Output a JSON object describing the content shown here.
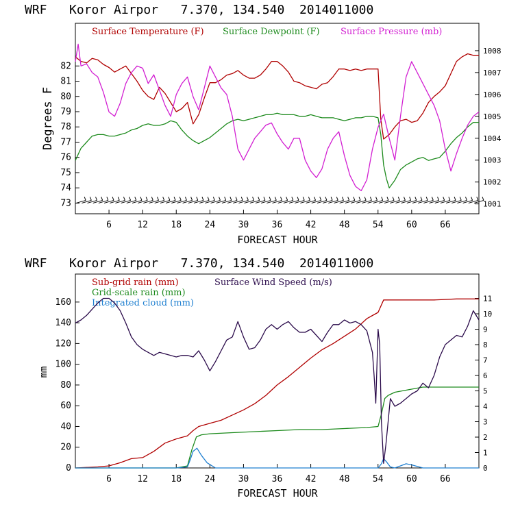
{
  "colors": {
    "temperature": "#b00000",
    "dewpoint": "#1c8a1c",
    "pressure": "#d21fd2",
    "subgrid": "#b00000",
    "gridscale": "#1c8a1c",
    "cloud": "#1e7fd0",
    "wind": "#2a0a4a",
    "barbs": "#000000"
  },
  "chart_data": [
    {
      "type": "line",
      "title": "WRF   Koror Airpor   7.370, 134.540  2014011000",
      "xlabel": "FORECAST HOUR",
      "ylabel": "Degrees F",
      "xlim": [
        0,
        72
      ],
      "ylim": [
        72.3,
        84.8
      ],
      "y2lim": [
        1000.55,
        1009.25
      ],
      "xticks": [
        6,
        12,
        18,
        24,
        30,
        36,
        42,
        48,
        54,
        60,
        66
      ],
      "yticks": [
        73,
        74,
        75,
        76,
        77,
        78,
        79,
        80,
        81,
        82
      ],
      "y2ticks": [
        1001,
        1002,
        1003,
        1004,
        1005,
        1006,
        1007,
        1008
      ],
      "legend": [
        "Surface Temperature (F)",
        "Surface Dewpoint (F)",
        "Surface Pressure (mb)"
      ],
      "legend_position": "top",
      "series": [
        {
          "name": "Surface Temperature (F)",
          "axis": "left",
          "x": [
            0,
            1,
            2,
            3,
            4,
            5,
            6,
            7,
            8,
            9,
            10,
            11,
            12,
            13,
            14,
            15,
            16,
            17,
            18,
            19,
            20,
            21,
            22,
            23,
            24,
            25,
            26,
            27,
            28,
            29,
            30,
            31,
            32,
            33,
            34,
            35,
            36,
            37,
            38,
            39,
            40,
            41,
            42,
            43,
            44,
            45,
            46,
            47,
            48,
            49,
            50,
            51,
            52,
            53,
            54,
            54.5,
            55,
            56,
            57,
            58,
            59,
            60,
            61,
            62,
            63,
            64,
            65,
            66,
            67,
            68,
            69,
            70,
            71,
            72
          ],
          "values": [
            82.6,
            82.3,
            82.2,
            82.5,
            82.4,
            82.1,
            81.9,
            81.6,
            81.8,
            82.0,
            81.5,
            81.0,
            80.4,
            80.0,
            79.8,
            80.6,
            80.2,
            79.6,
            79.0,
            79.2,
            79.6,
            78.2,
            78.8,
            79.9,
            80.9,
            80.9,
            81.1,
            81.4,
            81.5,
            81.7,
            81.4,
            81.2,
            81.2,
            81.4,
            81.8,
            82.3,
            82.3,
            82.0,
            81.6,
            81.0,
            80.9,
            80.7,
            80.6,
            80.5,
            80.8,
            80.9,
            81.3,
            81.8,
            81.8,
            81.7,
            81.8,
            81.7,
            81.8,
            81.8,
            81.8,
            78.5,
            77.2,
            77.5,
            78.0,
            78.4,
            78.5,
            78.3,
            78.4,
            78.9,
            79.6,
            80.0,
            80.3,
            80.7,
            81.5,
            82.3,
            82.6,
            82.8,
            82.7,
            82.7
          ]
        },
        {
          "name": "Surface Dewpoint (F)",
          "axis": "left",
          "x": [
            0,
            1,
            2,
            3,
            4,
            5,
            6,
            7,
            8,
            9,
            10,
            11,
            12,
            13,
            14,
            15,
            16,
            17,
            18,
            19,
            20,
            21,
            22,
            23,
            24,
            25,
            26,
            27,
            28,
            29,
            30,
            31,
            32,
            33,
            34,
            35,
            36,
            37,
            38,
            39,
            40,
            41,
            42,
            43,
            44,
            45,
            46,
            47,
            48,
            49,
            50,
            51,
            52,
            53,
            54,
            54.5,
            55,
            55.5,
            56,
            57,
            58,
            59,
            60,
            61,
            62,
            63,
            64,
            65,
            66,
            67,
            68,
            69,
            70,
            71,
            72
          ],
          "values": [
            75.8,
            76.6,
            77.0,
            77.4,
            77.5,
            77.5,
            77.4,
            77.4,
            77.5,
            77.6,
            77.8,
            77.9,
            78.1,
            78.2,
            78.1,
            78.1,
            78.2,
            78.4,
            78.3,
            77.8,
            77.4,
            77.1,
            76.9,
            77.1,
            77.3,
            77.6,
            77.9,
            78.2,
            78.4,
            78.5,
            78.4,
            78.5,
            78.6,
            78.7,
            78.8,
            78.8,
            78.9,
            78.8,
            78.8,
            78.8,
            78.7,
            78.7,
            78.8,
            78.7,
            78.6,
            78.6,
            78.6,
            78.5,
            78.4,
            78.5,
            78.6,
            78.6,
            78.7,
            78.7,
            78.6,
            77.5,
            75.5,
            74.6,
            74.0,
            74.5,
            75.2,
            75.5,
            75.7,
            75.9,
            76.0,
            75.8,
            75.9,
            76.0,
            76.4,
            76.9,
            77.3,
            77.6,
            78.0,
            78.3,
            78.3
          ]
        },
        {
          "name": "Surface Pressure (mb)",
          "axis": "right",
          "x": [
            0,
            0.5,
            1,
            2,
            3,
            4,
            5,
            6,
            7,
            8,
            9,
            10,
            11,
            12,
            13,
            14,
            15,
            16,
            17,
            18,
            19,
            20,
            21,
            22,
            23,
            24,
            25,
            26,
            27,
            28,
            29,
            30,
            31,
            32,
            33,
            34,
            35,
            36,
            37,
            38,
            39,
            40,
            41,
            42,
            43,
            44,
            45,
            46,
            47,
            48,
            49,
            50,
            51,
            52,
            53,
            54,
            55,
            56,
            57,
            58,
            59,
            60,
            61,
            62,
            63,
            64,
            65,
            66,
            67,
            68,
            69,
            70,
            71,
            72
          ],
          "values": [
            1007.5,
            1008.3,
            1007.3,
            1007.4,
            1007.0,
            1006.8,
            1006.1,
            1005.2,
            1005.0,
            1005.6,
            1006.5,
            1007.0,
            1007.3,
            1007.2,
            1006.5,
            1006.9,
            1006.2,
            1005.5,
            1005.0,
            1006.0,
            1006.5,
            1006.8,
            1005.9,
            1005.3,
            1006.3,
            1007.3,
            1006.8,
            1006.3,
            1006.0,
            1005.0,
            1003.5,
            1003.0,
            1003.5,
            1004.0,
            1004.3,
            1004.6,
            1004.7,
            1004.2,
            1003.8,
            1003.5,
            1004.0,
            1004.0,
            1003.0,
            1002.5,
            1002.2,
            1002.6,
            1003.5,
            1004.0,
            1004.3,
            1003.2,
            1002.3,
            1001.8,
            1001.6,
            1002.1,
            1003.5,
            1004.5,
            1005.1,
            1004.0,
            1003.0,
            1005.0,
            1006.8,
            1007.5,
            1007.0,
            1006.5,
            1006.0,
            1005.5,
            1004.8,
            1003.5,
            1002.5,
            1003.3,
            1004.0,
            1004.6,
            1005.0,
            1005.2
          ]
        }
      ],
      "wind_barbs": {
        "x_start": 1,
        "x_end": 72,
        "y": 73.0,
        "note": ""
      }
    },
    {
      "type": "line",
      "title": "WRF   Koror Airpor   7.370, 134.540  2014011000",
      "xlabel": "FORECAST HOUR",
      "ylabel": "mm",
      "xlim": [
        0,
        72
      ],
      "ylim": [
        0,
        187
      ],
      "y2lim": [
        0,
        12.58
      ],
      "xticks": [
        6,
        12,
        18,
        24,
        30,
        36,
        42,
        48,
        54,
        60,
        66
      ],
      "yticks": [
        0,
        20,
        40,
        60,
        80,
        100,
        120,
        140,
        160
      ],
      "y2ticks": [
        0,
        1,
        2,
        3,
        4,
        5,
        6,
        7,
        8,
        9,
        10,
        11
      ],
      "legend": [
        "Sub-grid rain (mm)",
        "Grid-scale rain (mm)",
        "Integrated cloud (mm)",
        "Surface Wind Speed (m/s)"
      ],
      "legend_position": "top-left",
      "series": [
        {
          "name": "Sub-grid rain (mm)",
          "axis": "left",
          "x": [
            0,
            4,
            6,
            8,
            10,
            12,
            14,
            16,
            18,
            20,
            21,
            22,
            24,
            26,
            28,
            30,
            32,
            34,
            36,
            38,
            40,
            42,
            44,
            46,
            48,
            50,
            52,
            53,
            54,
            55,
            56,
            60,
            64,
            68,
            72
          ],
          "values": [
            0,
            1,
            2,
            5,
            9,
            10,
            16,
            24,
            28,
            31,
            36,
            40,
            43,
            46,
            51,
            56,
            62,
            70,
            80,
            88,
            97,
            106,
            114,
            120,
            127,
            134,
            144,
            147,
            150,
            162,
            162,
            162,
            162,
            163,
            163
          ]
        },
        {
          "name": "Grid-scale rain (mm)",
          "axis": "left",
          "x": [
            0,
            18,
            20,
            20.8,
            21.6,
            22.5,
            24,
            28,
            32,
            36,
            40,
            44,
            48,
            52,
            54,
            54.6,
            55.2,
            55.8,
            57,
            60,
            62,
            66,
            72
          ],
          "values": [
            0,
            0,
            2,
            18,
            30,
            32,
            33,
            34,
            35,
            36,
            37,
            37,
            38,
            39,
            40,
            52,
            67,
            70,
            73,
            76,
            78,
            78,
            78
          ]
        },
        {
          "name": "Integrated cloud (mm)",
          "axis": "left",
          "x": [
            0,
            10,
            18,
            20,
            20.5,
            21,
            21.7,
            22.5,
            23.5,
            25,
            30,
            40,
            50,
            54,
            54.6,
            55,
            55.5,
            56.2,
            57,
            58,
            59,
            60,
            62,
            66,
            72
          ],
          "values": [
            0,
            0,
            0,
            1,
            8,
            16,
            19,
            12,
            5,
            0,
            0,
            0,
            0,
            0,
            4,
            9,
            6,
            1,
            0,
            2,
            4,
            3,
            0,
            0,
            0
          ]
        },
        {
          "name": "Surface Wind Speed (m/s)",
          "axis": "right",
          "x": [
            0,
            1,
            2,
            3,
            4,
            5,
            6,
            7,
            8,
            9,
            10,
            11,
            12,
            13,
            14,
            15,
            16,
            17,
            18,
            19,
            20,
            21,
            22,
            23,
            24,
            25,
            26,
            27,
            28,
            29,
            30,
            31,
            32,
            33,
            34,
            35,
            36,
            37,
            38,
            39,
            40,
            41,
            42,
            43,
            44,
            45,
            46,
            47,
            48,
            49,
            50,
            51,
            52,
            53,
            53.3,
            53.6,
            54,
            54.3,
            54.6,
            55,
            55.4,
            55.8,
            56.2,
            57,
            58,
            59,
            60,
            61,
            62,
            63,
            64,
            65,
            66,
            67,
            68,
            69,
            70,
            71,
            72
          ],
          "values": [
            9.4,
            9.6,
            9.9,
            10.3,
            10.7,
            11.0,
            11.0,
            10.7,
            10.2,
            9.4,
            8.5,
            8.0,
            7.7,
            7.5,
            7.3,
            7.5,
            7.4,
            7.3,
            7.2,
            7.3,
            7.3,
            7.2,
            7.6,
            7.0,
            6.3,
            6.9,
            7.6,
            8.3,
            8.5,
            9.5,
            8.5,
            7.7,
            7.8,
            8.3,
            9.0,
            9.3,
            9.0,
            9.3,
            9.5,
            9.1,
            8.8,
            8.8,
            9.0,
            8.6,
            8.2,
            8.8,
            9.3,
            9.3,
            9.6,
            9.4,
            9.5,
            9.3,
            8.9,
            7.5,
            6.0,
            4.2,
            9.0,
            8.0,
            3.0,
            0.3,
            1.5,
            3.0,
            4.5,
            4.0,
            4.2,
            4.5,
            4.8,
            5.0,
            5.5,
            5.2,
            6.0,
            7.2,
            8.0,
            8.3,
            8.6,
            8.5,
            9.2,
            10.2,
            9.6
          ]
        }
      ]
    }
  ]
}
